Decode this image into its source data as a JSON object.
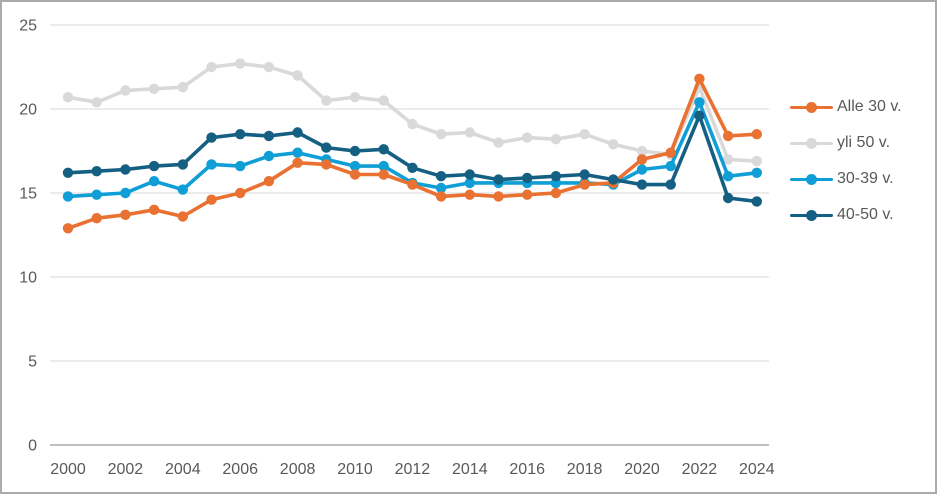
{
  "page": {
    "background_color": "#ffffff",
    "frame_border_color": "#ababab",
    "title": ""
  },
  "chart_data": {
    "type": "line",
    "title": "",
    "xlabel": "",
    "ylabel": "",
    "x": [
      2000,
      2001,
      2002,
      2003,
      2004,
      2005,
      2006,
      2007,
      2008,
      2009,
      2010,
      2011,
      2012,
      2013,
      2014,
      2015,
      2016,
      2017,
      2018,
      2019,
      2020,
      2021,
      2022,
      2023,
      2024
    ],
    "x_tick_labels": [
      "2000",
      "2002",
      "2004",
      "2006",
      "2008",
      "2010",
      "2012",
      "2014",
      "2016",
      "2018",
      "2020",
      "2022",
      "2024"
    ],
    "y_ticks": [
      0,
      5,
      10,
      15,
      20,
      25
    ],
    "y_tick_labels": [
      "0",
      "5",
      "10",
      "15",
      "20",
      "25"
    ],
    "ylim": [
      0,
      25
    ],
    "grid": "horizontal",
    "legend_position": "right",
    "axis_text_color": "#595959",
    "gridline_color": "#d9d9d9",
    "axis_line_color": "#bfbfbf",
    "series": [
      {
        "name": "Alle 30 v.",
        "color": "#E97132",
        "values": [
          12.9,
          13.5,
          13.7,
          14.0,
          13.6,
          14.6,
          15.0,
          15.7,
          16.8,
          16.7,
          16.1,
          16.1,
          15.5,
          14.8,
          14.9,
          14.8,
          14.9,
          15.0,
          15.5,
          15.6,
          17.0,
          17.4,
          21.8,
          18.4,
          18.5
        ]
      },
      {
        "name": "yli 50 v.",
        "color": "#D9D9D9",
        "values": [
          20.7,
          20.4,
          21.1,
          21.2,
          21.3,
          22.5,
          22.7,
          22.5,
          22.0,
          20.5,
          20.7,
          20.5,
          19.1,
          18.5,
          18.6,
          18.0,
          18.3,
          18.2,
          18.5,
          17.9,
          17.5,
          17.3,
          21.3,
          17.0,
          16.9
        ]
      },
      {
        "name": "30-39 v.",
        "color": "#0F9ED5",
        "values": [
          14.8,
          14.9,
          15.0,
          15.7,
          15.2,
          16.7,
          16.6,
          17.2,
          17.4,
          17.0,
          16.6,
          16.6,
          15.6,
          15.3,
          15.6,
          15.6,
          15.6,
          15.6,
          15.6,
          15.5,
          16.4,
          16.6,
          20.4,
          16.0,
          16.2
        ]
      },
      {
        "name": "40-50 v.",
        "color": "#156082",
        "values": [
          16.2,
          16.3,
          16.4,
          16.6,
          16.7,
          18.3,
          18.5,
          18.4,
          18.6,
          17.7,
          17.5,
          17.6,
          16.5,
          16.0,
          16.1,
          15.8,
          15.9,
          16.0,
          16.1,
          15.8,
          15.5,
          15.5,
          19.6,
          14.7,
          14.5
        ]
      }
    ]
  }
}
